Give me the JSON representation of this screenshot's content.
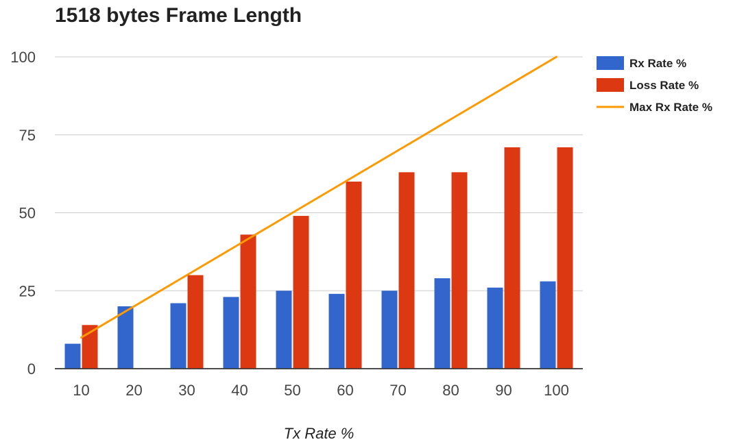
{
  "chart_data": {
    "type": "bar",
    "title": "1518 bytes Frame Length",
    "xlabel": "Tx Rate %",
    "ylabel": "",
    "categories": [
      "10",
      "20",
      "30",
      "40",
      "50",
      "60",
      "70",
      "80",
      "90",
      "100"
    ],
    "ylim": [
      0,
      100
    ],
    "yticks": [
      0,
      25,
      50,
      75,
      100
    ],
    "grid": true,
    "legend_position": "right",
    "series": [
      {
        "name": "Rx Rate %",
        "type": "bar",
        "color": "#3366cc",
        "values": [
          8,
          20,
          21,
          23,
          25,
          24,
          25,
          29,
          26,
          28
        ]
      },
      {
        "name": "Loss Rate %",
        "type": "bar",
        "color": "#dc3912",
        "values": [
          14,
          0,
          30,
          43,
          49,
          60,
          63,
          63,
          71,
          71
        ]
      },
      {
        "name": "Max Rx Rate %",
        "type": "line",
        "color": "#ff9900",
        "values": [
          10,
          20,
          30,
          40,
          50,
          60,
          70,
          80,
          90,
          100
        ]
      }
    ]
  }
}
